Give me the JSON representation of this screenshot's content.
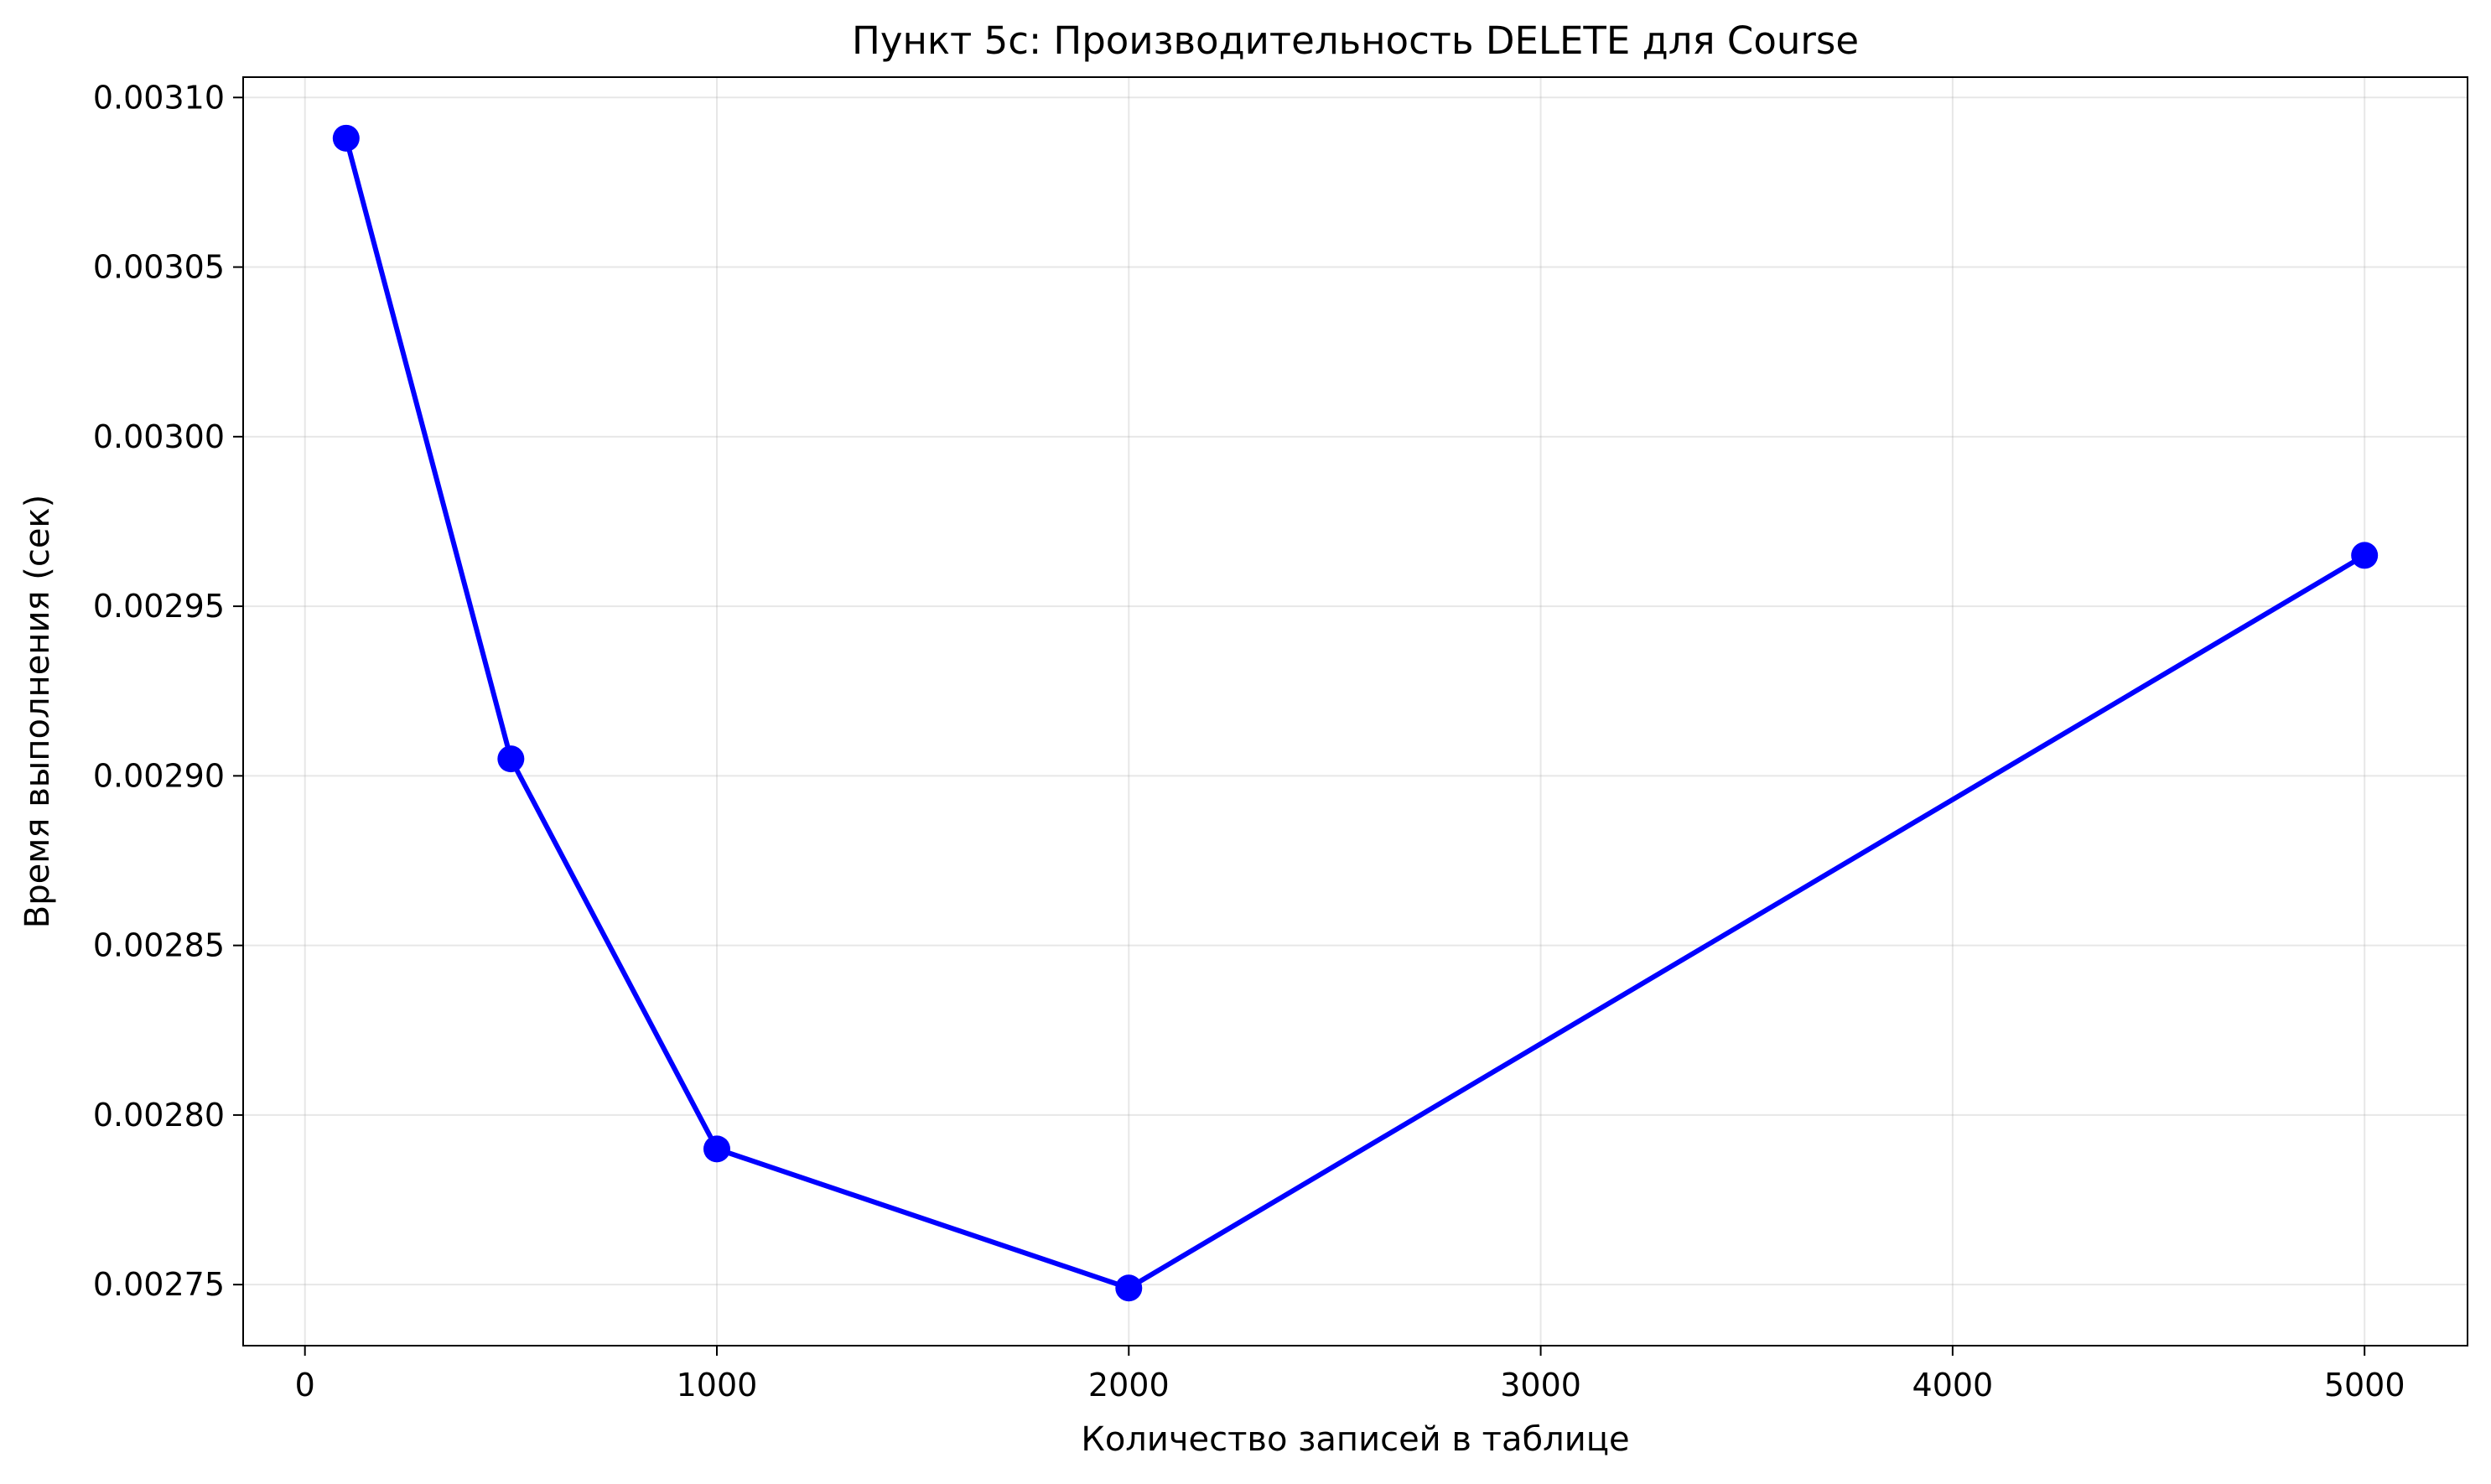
{
  "chart_data": {
    "type": "line",
    "title": "Пункт 5c: Производительность DELETE для Course",
    "xlabel": "Количество записей в таблице",
    "ylabel": "Время выполнения (сек)",
    "xlim": [
      -150,
      5250
    ],
    "ylim": [
      0.002732,
      0.003106
    ],
    "x_ticks": [
      0,
      1000,
      2000,
      3000,
      4000,
      5000
    ],
    "x_tick_labels": [
      "0",
      "1000",
      "2000",
      "3000",
      "4000",
      "5000"
    ],
    "y_ticks": [
      0.00275,
      0.0028,
      0.00285,
      0.0029,
      0.00295,
      0.003,
      0.00305,
      0.0031
    ],
    "y_tick_labels": [
      "0.00275",
      "0.00280",
      "0.00285",
      "0.00290",
      "0.00295",
      "0.00300",
      "0.00305",
      "0.00310"
    ],
    "grid": true,
    "series": [
      {
        "color": "#0000ff",
        "marker": "circle",
        "x": [
          100,
          500,
          1000,
          2000,
          5000
        ],
        "y": [
          0.003088,
          0.002905,
          0.00279,
          0.002749,
          0.002965
        ]
      }
    ]
  }
}
